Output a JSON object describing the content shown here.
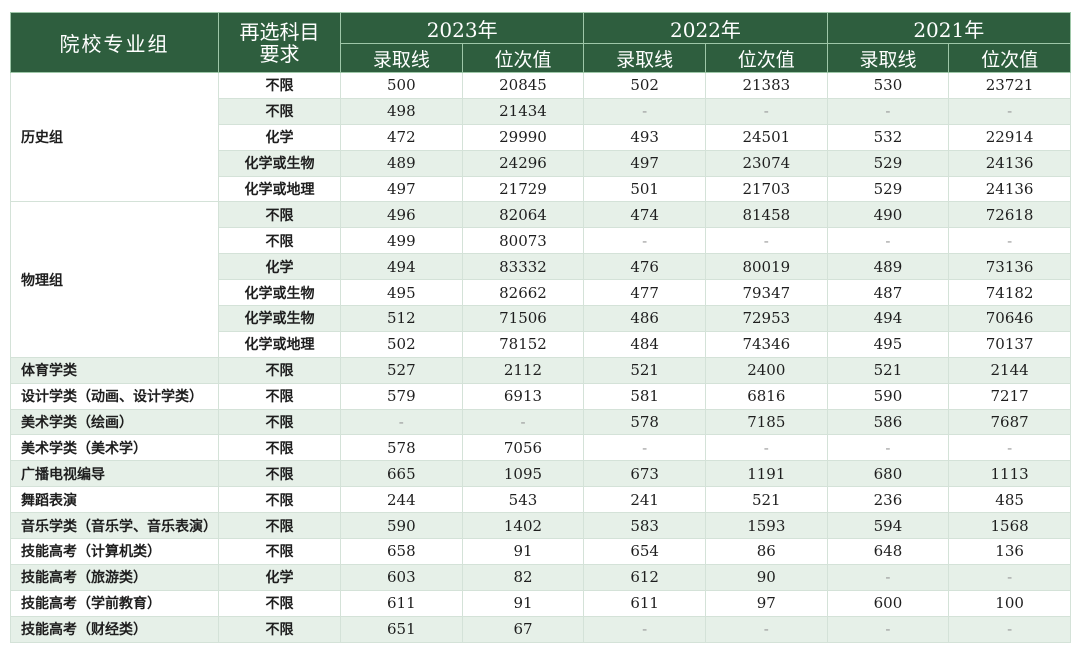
{
  "header": {
    "group_label": "院校专业组",
    "subject_label": "再选科目\n要求",
    "years": [
      "2023年",
      "2022年",
      "2021年"
    ],
    "score_label": "录取线",
    "rank_label": "位次值"
  },
  "rows": [
    {
      "group": "历史组",
      "req": "不限",
      "v": [
        "500",
        "20845",
        "502",
        "21383",
        "530",
        "23721"
      ]
    },
    {
      "group": "",
      "req": "不限",
      "v": [
        "498",
        "21434",
        "-",
        "-",
        "-",
        "-"
      ]
    },
    {
      "group": "",
      "req": "化学",
      "v": [
        "472",
        "29990",
        "493",
        "24501",
        "532",
        "22914"
      ]
    },
    {
      "group": "",
      "req": "化学或生物",
      "v": [
        "489",
        "24296",
        "497",
        "23074",
        "529",
        "24136"
      ]
    },
    {
      "group": "",
      "req": "化学或地理",
      "v": [
        "497",
        "21729",
        "501",
        "21703",
        "529",
        "24136"
      ]
    },
    {
      "group": "物理组",
      "req": "不限",
      "v": [
        "496",
        "82064",
        "474",
        "81458",
        "490",
        "72618"
      ]
    },
    {
      "group": "",
      "req": "不限",
      "v": [
        "499",
        "80073",
        "-",
        "-",
        "-",
        "-"
      ]
    },
    {
      "group": "",
      "req": "化学",
      "v": [
        "494",
        "83332",
        "476",
        "80019",
        "489",
        "73136"
      ]
    },
    {
      "group": "",
      "req": "化学或生物",
      "v": [
        "495",
        "82662",
        "477",
        "79347",
        "487",
        "74182"
      ]
    },
    {
      "group": "",
      "req": "化学或生物",
      "v": [
        "512",
        "71506",
        "486",
        "72953",
        "494",
        "70646"
      ]
    },
    {
      "group": "",
      "req": "化学或地理",
      "v": [
        "502",
        "78152",
        "484",
        "74346",
        "495",
        "70137"
      ]
    },
    {
      "group": "体育学类",
      "req": "不限",
      "v": [
        "527",
        "2112",
        "521",
        "2400",
        "521",
        "2144"
      ]
    },
    {
      "group": "设计学类（动画、设计学类）",
      "req": "不限",
      "v": [
        "579",
        "6913",
        "581",
        "6816",
        "590",
        "7217"
      ]
    },
    {
      "group": "美术学类（绘画）",
      "req": "不限",
      "v": [
        "-",
        "-",
        "578",
        "7185",
        "586",
        "7687"
      ]
    },
    {
      "group": "美术学类（美术学）",
      "req": "不限",
      "v": [
        "578",
        "7056",
        "-",
        "-",
        "-",
        "-"
      ]
    },
    {
      "group": "广播电视编导",
      "req": "不限",
      "v": [
        "665",
        "1095",
        "673",
        "1191",
        "680",
        "1113"
      ]
    },
    {
      "group": "舞蹈表演",
      "req": "不限",
      "v": [
        "244",
        "543",
        "241",
        "521",
        "236",
        "485"
      ]
    },
    {
      "group": "音乐学类（音乐学、音乐表演）",
      "req": "不限",
      "v": [
        "590",
        "1402",
        "583",
        "1593",
        "594",
        "1568"
      ]
    },
    {
      "group": "技能高考（计算机类）",
      "req": "不限",
      "v": [
        "658",
        "91",
        "654",
        "86",
        "648",
        "136"
      ]
    },
    {
      "group": "技能高考（旅游类）",
      "req": "化学",
      "v": [
        "603",
        "82",
        "612",
        "90",
        "-",
        "-"
      ]
    },
    {
      "group": "技能高考（学前教育）",
      "req": "不限",
      "v": [
        "611",
        "91",
        "611",
        "97",
        "600",
        "100"
      ]
    },
    {
      "group": "技能高考（财经类）",
      "req": "不限",
      "v": [
        "651",
        "67",
        "-",
        "-",
        "-",
        "-"
      ]
    }
  ],
  "colors": {
    "header_bg": "#2e5e3e",
    "stripe_bg": "#e6f0e8",
    "border": "#d4e2d8"
  }
}
